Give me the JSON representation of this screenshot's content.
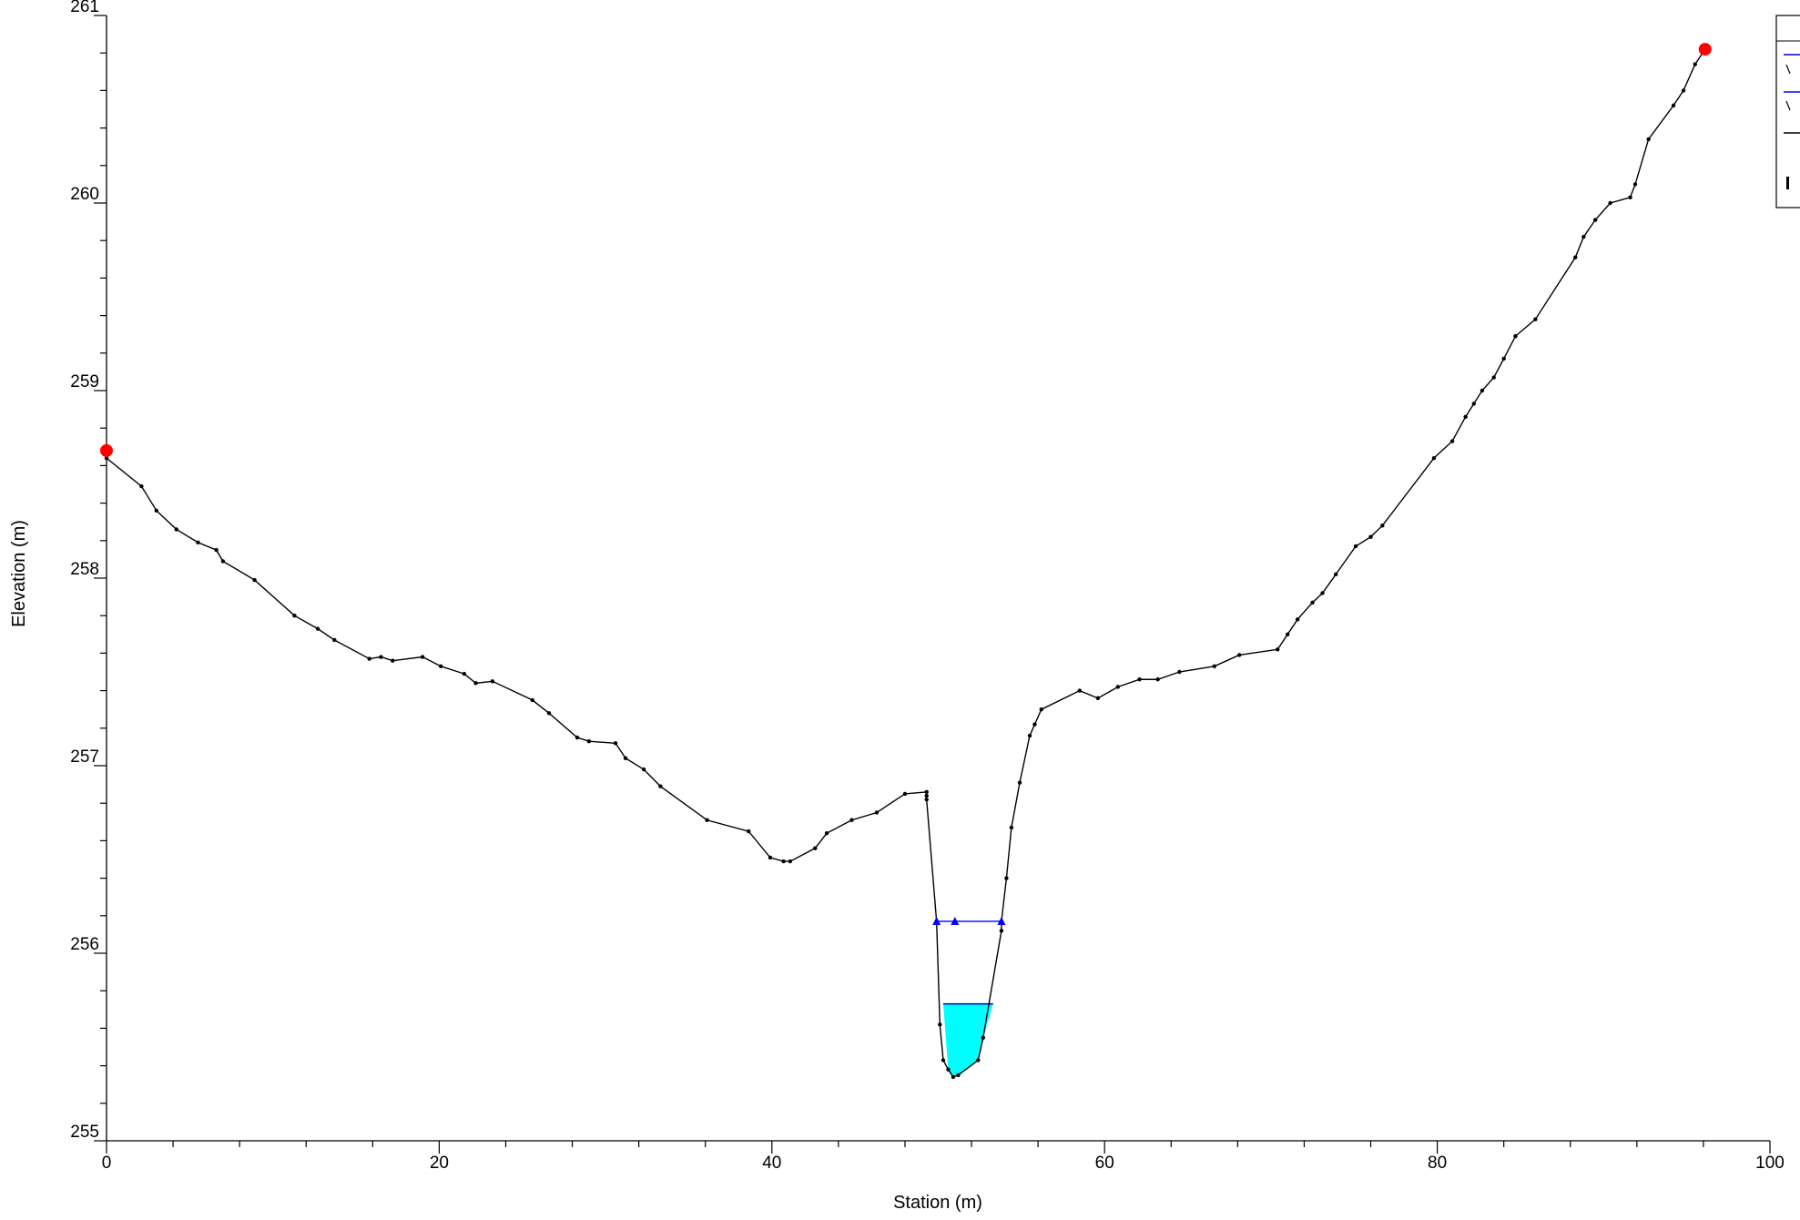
{
  "colors": {
    "ground": "#000000",
    "ws_fill": "#00ffff",
    "ws_line": "#0000cc",
    "crit_line": "#0000ff",
    "bank": "#ff0000",
    "axis": "#000000"
  },
  "chart_data": {
    "type": "line",
    "title": "",
    "xlabel": "Station (m)",
    "ylabel": "Elevation (m)",
    "xlim": [
      0,
      100
    ],
    "ylim": [
      255,
      261
    ],
    "x_ticks": [
      0,
      20,
      40,
      60,
      80,
      100
    ],
    "y_ticks": [
      255,
      256,
      257,
      258,
      259,
      260,
      261
    ],
    "x_tick_labels": [
      "0",
      "20",
      "40",
      "60",
      "80",
      "100"
    ],
    "y_tick_labels": [
      "255",
      "256",
      "257",
      "258",
      "259",
      "260",
      "261"
    ],
    "grid": false,
    "legend": {
      "placement": "top-right",
      "entries": []
    },
    "series": [
      {
        "kind": "ground",
        "x": [
          0.0,
          2.1,
          3.0,
          4.2,
          5.5,
          6.6,
          7.0,
          8.9,
          11.3,
          12.7,
          13.7,
          15.8,
          16.5,
          17.2,
          19.0,
          20.1,
          21.5,
          22.2,
          23.2,
          25.6,
          26.6,
          28.3,
          29.0,
          30.6,
          31.2,
          32.3,
          33.3,
          36.1,
          38.6,
          39.9,
          40.7,
          41.1,
          42.6,
          43.3,
          44.8,
          46.3,
          48.0,
          49.3,
          49.3,
          49.3,
          49.9,
          50.1,
          50.3,
          50.6,
          50.9,
          51.2,
          52.4,
          52.7,
          53.8,
          53.8,
          54.1,
          54.4,
          54.9,
          55.5,
          55.8,
          56.2,
          58.5,
          59.6,
          60.8,
          62.1,
          63.2,
          64.5,
          66.6,
          68.1,
          70.4,
          71.0,
          71.6,
          72.5,
          73.1,
          73.9,
          75.1,
          76.0,
          76.7,
          79.8,
          80.9,
          81.7,
          82.2,
          82.7,
          83.4,
          84.0,
          84.7,
          85.9,
          88.3,
          88.8,
          89.5,
          90.4,
          91.6,
          91.9,
          92.7,
          94.2,
          94.8,
          95.5,
          96.1
        ],
        "y": [
          258.64,
          258.49,
          258.36,
          258.26,
          258.19,
          258.15,
          258.09,
          257.99,
          257.8,
          257.73,
          257.67,
          257.57,
          257.58,
          257.56,
          257.58,
          257.53,
          257.49,
          257.44,
          257.45,
          257.35,
          257.28,
          257.15,
          257.13,
          257.12,
          257.04,
          256.98,
          256.89,
          256.71,
          256.65,
          256.51,
          256.49,
          256.49,
          256.56,
          256.64,
          256.71,
          256.75,
          256.85,
          256.86,
          256.84,
          256.82,
          256.17,
          255.62,
          255.43,
          255.38,
          255.34,
          255.35,
          255.43,
          255.55,
          256.12,
          256.17,
          256.4,
          256.67,
          256.91,
          257.16,
          257.22,
          257.3,
          257.4,
          257.36,
          257.42,
          257.46,
          257.46,
          257.5,
          257.53,
          257.59,
          257.62,
          257.7,
          257.78,
          257.87,
          257.92,
          258.02,
          258.17,
          258.22,
          258.28,
          258.64,
          258.73,
          258.86,
          258.93,
          259.0,
          259.07,
          259.17,
          259.29,
          259.38,
          259.71,
          259.82,
          259.91,
          260.0,
          260.03,
          260.1,
          260.34,
          260.52,
          260.6,
          260.74,
          260.82
        ]
      },
      {
        "kind": "water_surface",
        "elevation": 255.73,
        "x_left": 50.3,
        "x_right": 53.3
      },
      {
        "kind": "critical_ws",
        "elevation": 256.17,
        "x": [
          49.9,
          51.0,
          53.8
        ]
      },
      {
        "kind": "bank_stations",
        "x": [
          0.0,
          96.1
        ],
        "y": [
          258.68,
          260.82
        ]
      }
    ]
  }
}
